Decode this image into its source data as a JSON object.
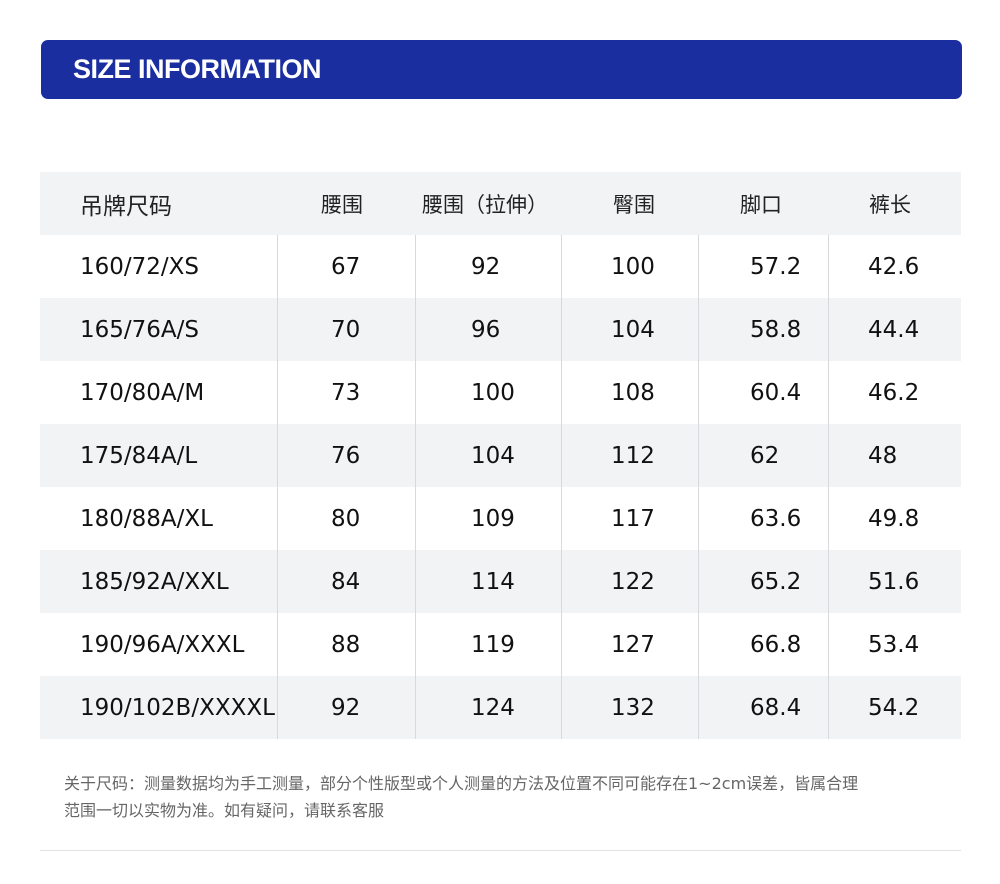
{
  "banner": {
    "title": "SIZE INFORMATION"
  },
  "table": {
    "headers": [
      "吊牌尺码",
      "腰围",
      "腰围（拉伸）",
      "臀围",
      "脚口",
      "裤长"
    ],
    "rows": [
      [
        "160/72/XS",
        "67",
        "92",
        "100",
        "57.2",
        "42.6"
      ],
      [
        "165/76A/S",
        "70",
        "96",
        "104",
        "58.8",
        "44.4"
      ],
      [
        "170/80A/M",
        "73",
        "100",
        "108",
        "60.4",
        "46.2"
      ],
      [
        "175/84A/L",
        "76",
        "104",
        "112",
        "62",
        "48"
      ],
      [
        "180/88A/XL",
        "80",
        "109",
        "117",
        "63.6",
        "49.8"
      ],
      [
        "185/92A/XXL",
        "84",
        "114",
        "122",
        "65.2",
        "51.6"
      ],
      [
        "190/96A/XXXL",
        "88",
        "119",
        "127",
        "66.8",
        "53.4"
      ],
      [
        "190/102B/XXXXL",
        "92",
        "124",
        "132",
        "68.4",
        "54.2"
      ]
    ]
  },
  "note": {
    "line1": "关于尺码：测量数据均为手工测量，部分个性版型或个人测量的方法及位置不同可能存在1~2cm误差，皆属合理",
    "line2": "范围一切以实物为准。如有疑问，请联系客服"
  },
  "colors": {
    "banner": "#1a2ea0",
    "shade": "#f2f3f5"
  }
}
